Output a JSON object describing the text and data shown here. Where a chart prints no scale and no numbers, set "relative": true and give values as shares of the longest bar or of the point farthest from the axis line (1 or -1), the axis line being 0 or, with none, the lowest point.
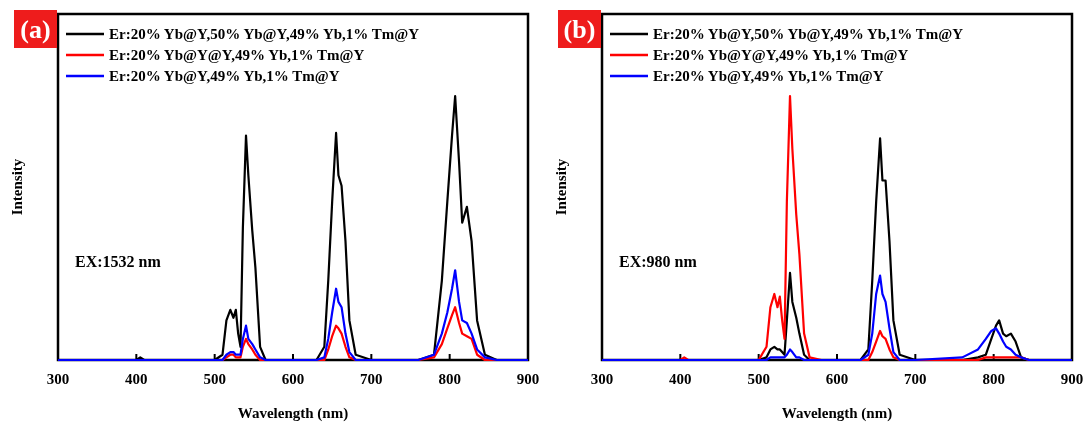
{
  "chart_data": [
    {
      "type": "line",
      "title": "(a)",
      "xlabel": "Wavelength (nm)",
      "ylabel": "Intensity",
      "annotations": [
        "EX:1532 nm"
      ],
      "relative": true,
      "tick_labels": "x",
      "legend": "top left",
      "xlim": [
        300,
        900
      ],
      "xticks": [
        300,
        400,
        500,
        600,
        700,
        800,
        900
      ],
      "x": [
        300,
        400,
        405,
        410,
        450,
        500,
        510,
        515,
        520,
        524,
        527,
        530,
        533,
        536,
        540,
        543,
        548,
        552,
        558,
        565,
        580,
        600,
        630,
        640,
        645,
        650,
        655,
        658,
        662,
        667,
        672,
        680,
        700,
        760,
        780,
        790,
        797,
        803,
        807,
        812,
        816,
        822,
        828,
        835,
        845,
        860,
        900
      ],
      "series": [
        {
          "name": "Er:20% Yb@Y,50% Yb@Y,49% Yb,1% Tm@Y",
          "color": "#000000",
          "values": [
            0,
            0,
            0.01,
            0,
            0,
            0,
            0.02,
            0.15,
            0.19,
            0.16,
            0.19,
            0.1,
            0.05,
            0.5,
            0.85,
            0.7,
            0.49,
            0.35,
            0.05,
            0,
            0,
            0,
            0,
            0.05,
            0.3,
            0.6,
            0.86,
            0.7,
            0.66,
            0.45,
            0.15,
            0.02,
            0,
            0,
            0.02,
            0.3,
            0.6,
            0.85,
            1.0,
            0.75,
            0.52,
            0.58,
            0.45,
            0.15,
            0.02,
            0,
            0
          ]
        },
        {
          "name": "Er:20% Yb@Y@Y,49% Yb,1% Tm@Y",
          "color": "#ff0000",
          "values": [
            null,
            null,
            null,
            null,
            null,
            0,
            0,
            0.01,
            0.02,
            0.02,
            0.01,
            0.01,
            0.01,
            0.05,
            0.08,
            0.06,
            0.04,
            0.02,
            0,
            0,
            0,
            0,
            0,
            0,
            0.04,
            0.09,
            0.13,
            0.12,
            0.1,
            0.05,
            0.01,
            0,
            0,
            0,
            0.01,
            0.06,
            0.12,
            0.17,
            0.2,
            0.14,
            0.1,
            0.09,
            0.08,
            0.02,
            0,
            0,
            0
          ]
        },
        {
          "name": "Er:20% Yb@Y,49% Yb,1% Tm@Y",
          "color": "#0000ff",
          "values": [
            0,
            0,
            0,
            0,
            0,
            0,
            0,
            0.02,
            0.03,
            0.03,
            0.02,
            0.02,
            0.02,
            0.08,
            0.13,
            0.08,
            0.06,
            0.04,
            0.01,
            0,
            0,
            0,
            0,
            0.01,
            0.08,
            0.18,
            0.27,
            0.22,
            0.2,
            0.1,
            0.03,
            0,
            0,
            0,
            0.02,
            0.1,
            0.18,
            0.27,
            0.34,
            0.22,
            0.15,
            0.14,
            0.1,
            0.04,
            0.01,
            0,
            0
          ]
        }
      ]
    },
    {
      "type": "line",
      "title": "(b)",
      "xlabel": "Wavelength (nm)",
      "ylabel": "Intensity",
      "annotations": [
        "EX:980 nm"
      ],
      "relative": true,
      "tick_labels": "x",
      "legend": "top left",
      "xlim": [
        300,
        900
      ],
      "xticks": [
        300,
        400,
        500,
        600,
        700,
        800,
        900
      ],
      "x": [
        300,
        400,
        405,
        410,
        450,
        500,
        510,
        515,
        520,
        524,
        527,
        530,
        533,
        536,
        540,
        543,
        548,
        552,
        558,
        565,
        580,
        600,
        630,
        640,
        645,
        650,
        655,
        658,
        662,
        667,
        672,
        680,
        700,
        760,
        780,
        790,
        797,
        803,
        807,
        812,
        816,
        822,
        828,
        835,
        845,
        860,
        900
      ],
      "series": [
        {
          "name": "Er:20% Yb@Y,50% Yb@Y,49% Yb,1% Tm@Y",
          "color": "#000000",
          "values": [
            0,
            0,
            0,
            0,
            0,
            0,
            0.01,
            0.04,
            0.05,
            0.04,
            0.04,
            0.03,
            0.02,
            0.15,
            0.33,
            0.22,
            0.16,
            0.1,
            0.02,
            0,
            0,
            0,
            0,
            0.04,
            0.3,
            0.6,
            0.84,
            0.68,
            0.68,
            0.45,
            0.15,
            0.02,
            0,
            0,
            0.01,
            0.02,
            0.08,
            0.13,
            0.15,
            0.1,
            0.09,
            0.1,
            0.07,
            0.01,
            0,
            0,
            0
          ]
        },
        {
          "name": "Er:20% Yb@Y@Y,49% Yb,1% Tm@Y",
          "color": "#ff0000",
          "values": [
            0,
            0,
            0.01,
            0,
            0,
            0,
            0.05,
            0.2,
            0.25,
            0.2,
            0.24,
            0.15,
            0.08,
            0.6,
            1.0,
            0.8,
            0.55,
            0.4,
            0.1,
            0.01,
            0,
            0,
            0,
            0,
            0.03,
            0.07,
            0.11,
            0.09,
            0.08,
            0.04,
            0.01,
            0,
            0,
            0,
            0,
            0.01,
            0.01,
            0.01,
            0.01,
            0.01,
            0.01,
            0.01,
            0.01,
            0.01,
            0,
            null,
            null
          ]
        },
        {
          "name": "Er:20% Yb@Y,49% Yb,1% Tm@Y",
          "color": "#0000ff",
          "values": [
            0,
            0,
            0,
            0,
            0,
            0,
            0,
            0.01,
            0.01,
            0.01,
            0.01,
            0.01,
            0.01,
            0.02,
            0.04,
            0.03,
            0.01,
            0.01,
            0,
            0,
            0,
            0,
            0,
            0.02,
            0.1,
            0.25,
            0.32,
            0.25,
            0.22,
            0.12,
            0.03,
            0,
            0,
            0.01,
            0.04,
            0.08,
            0.11,
            0.12,
            0.1,
            0.07,
            0.05,
            0.04,
            0.02,
            0.01,
            0,
            0,
            0
          ]
        }
      ]
    }
  ]
}
